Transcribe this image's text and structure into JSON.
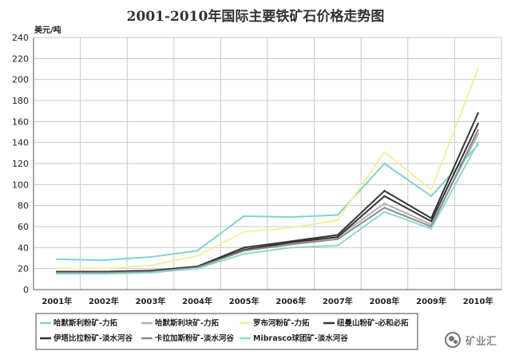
{
  "chart_data": {
    "type": "line",
    "title": "2001-2010年国际主要铁矿石价格走势图",
    "ylabel": "美元/吨",
    "xlabel": "",
    "ylim": [
      0,
      240
    ],
    "yticks": [
      0,
      20,
      40,
      60,
      80,
      100,
      120,
      140,
      160,
      180,
      200,
      220,
      240
    ],
    "categories": [
      "2001年",
      "2002年",
      "2003年",
      "2004年",
      "2005年",
      "2006年",
      "2007年",
      "2008年",
      "2009年",
      "2010年"
    ],
    "grid": true,
    "legend_position": "bottom",
    "series": [
      {
        "name": "哈默斯利粉矿-力拓",
        "color": "#7fd4cf",
        "values": [
          29,
          28,
          31,
          37,
          70,
          69,
          71,
          120,
          89,
          138
        ]
      },
      {
        "name": "哈默斯利块矿-力拓",
        "color": "#b0b0b0",
        "values": [
          16,
          16,
          17,
          22,
          37,
          44,
          50,
          82,
          62,
          148
        ]
      },
      {
        "name": "罗布河粉矿-力拓",
        "color": "#f2f0a0",
        "values": [
          20,
          20,
          23,
          32,
          55,
          59,
          66,
          131,
          95,
          210
        ]
      },
      {
        "name": "纽曼山粉矿-必和必拓",
        "color": "#2e3b30",
        "values": [
          17,
          17,
          18,
          22,
          40,
          46,
          52,
          94,
          68,
          168
        ]
      },
      {
        "name": "伊塔比拉粉矿-淡水河谷",
        "color": "#3a2f36",
        "values": [
          17,
          17,
          18,
          21,
          38,
          45,
          50,
          89,
          65,
          158
        ]
      },
      {
        "name": "卡拉加斯粉矿-淡水河谷",
        "color": "#8a8a8a",
        "values": [
          16,
          16,
          17,
          21,
          37,
          43,
          48,
          78,
          60,
          152
        ]
      },
      {
        "name": "Mibrasco球团矿-淡水河谷",
        "color": "#8fd6d6",
        "values": [
          15,
          15,
          16,
          20,
          34,
          40,
          42,
          74,
          58,
          140
        ]
      }
    ]
  },
  "watermark": {
    "text": "矿业汇"
  }
}
